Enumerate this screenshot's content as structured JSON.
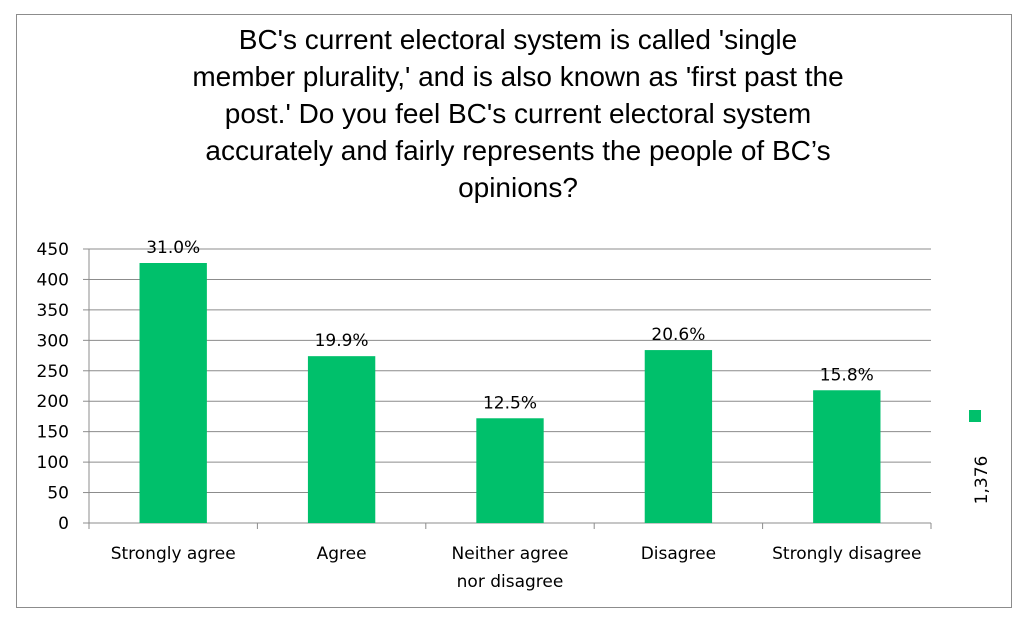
{
  "chart_data": {
    "type": "bar",
    "title_lines": [
      "BC's current electoral system is called 'single",
      "member plurality,' and is also known as 'first past the",
      "post.' Do you feel BC's current electoral system",
      "accurately and fairly represents the people of BC’s",
      "opinions?"
    ],
    "categories": [
      [
        "Strongly agree"
      ],
      [
        "Agree"
      ],
      [
        "Neither agree",
        "nor disagree"
      ],
      [
        "Disagree"
      ],
      [
        "Strongly disagree"
      ]
    ],
    "series": [
      {
        "name": "1,376",
        "values": [
          427,
          274,
          172,
          284,
          218
        ],
        "labels": [
          "31.0%",
          "19.9%",
          "12.5%",
          "20.6%",
          "15.8%"
        ],
        "color": "#00c06b"
      }
    ],
    "yticks": [
      "0",
      "50",
      "100",
      "150",
      "200",
      "250",
      "300",
      "350",
      "400",
      "450"
    ],
    "ylim": [
      0,
      450
    ],
    "grid": true,
    "legend_position": "right"
  }
}
